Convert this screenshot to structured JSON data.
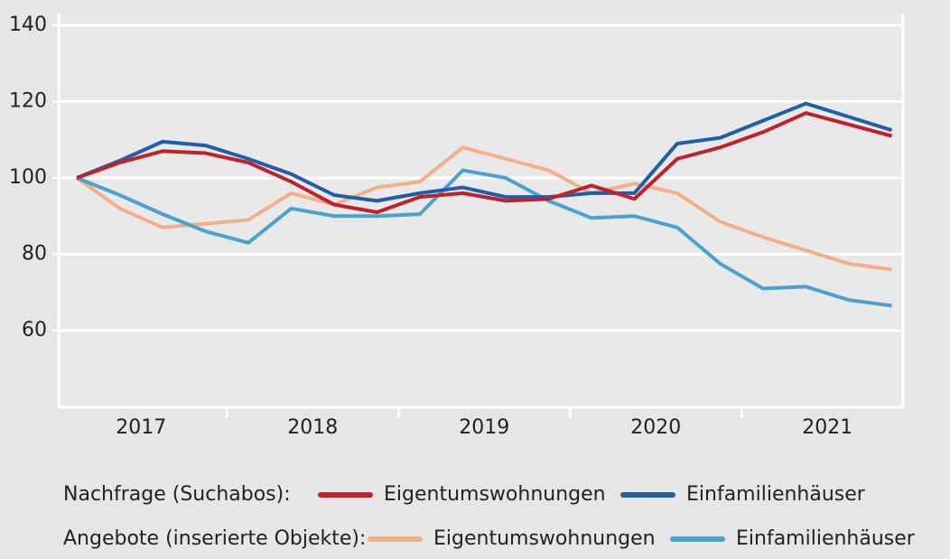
{
  "chart_data": {
    "type": "line",
    "year_labels": [
      "2017",
      "2018",
      "2019",
      "2020",
      "2021"
    ],
    "ylim": [
      40,
      140
    ],
    "yticks": [
      60,
      80,
      100,
      120,
      140
    ],
    "grid": true,
    "series": [
      {
        "group": "Nachfrage (Suchabos):",
        "name": "Eigentumswohnungen",
        "color": "#c0212b",
        "values": [
          100,
          104,
          107,
          106.5,
          104,
          99,
          93,
          91,
          95,
          96,
          94,
          94.5,
          98,
          94.5,
          105,
          108,
          112,
          117,
          114,
          111
        ]
      },
      {
        "group": "Nachfrage (Suchabos):",
        "name": "Einfamilienhäuser",
        "color": "#1f5ea8",
        "values": [
          100,
          104.5,
          109.5,
          108.5,
          105,
          101,
          95.5,
          94,
          96,
          97.5,
          95,
          95,
          96,
          96,
          109,
          110.5,
          115,
          119.5,
          116,
          112.5
        ]
      },
      {
        "group": "Angebote (inserierte Objekte):",
        "name": "Eigentumswohnungen",
        "color": "#f2b088",
        "values": [
          100,
          92,
          87,
          88,
          89,
          96,
          93,
          97.5,
          99,
          108,
          105,
          102,
          96,
          98.5,
          96,
          88.5,
          84.5,
          81,
          77.5,
          76
        ]
      },
      {
        "group": "Angebote (inserierte Objekte):",
        "name": "Einfamilienhäuser",
        "color": "#4aa3cf",
        "values": [
          100,
          95.5,
          90.5,
          86,
          83,
          92,
          90,
          90,
          90.5,
          102,
          100,
          94,
          89.5,
          90,
          87,
          77.5,
          71,
          71.5,
          68,
          66.5
        ]
      }
    ]
  }
}
